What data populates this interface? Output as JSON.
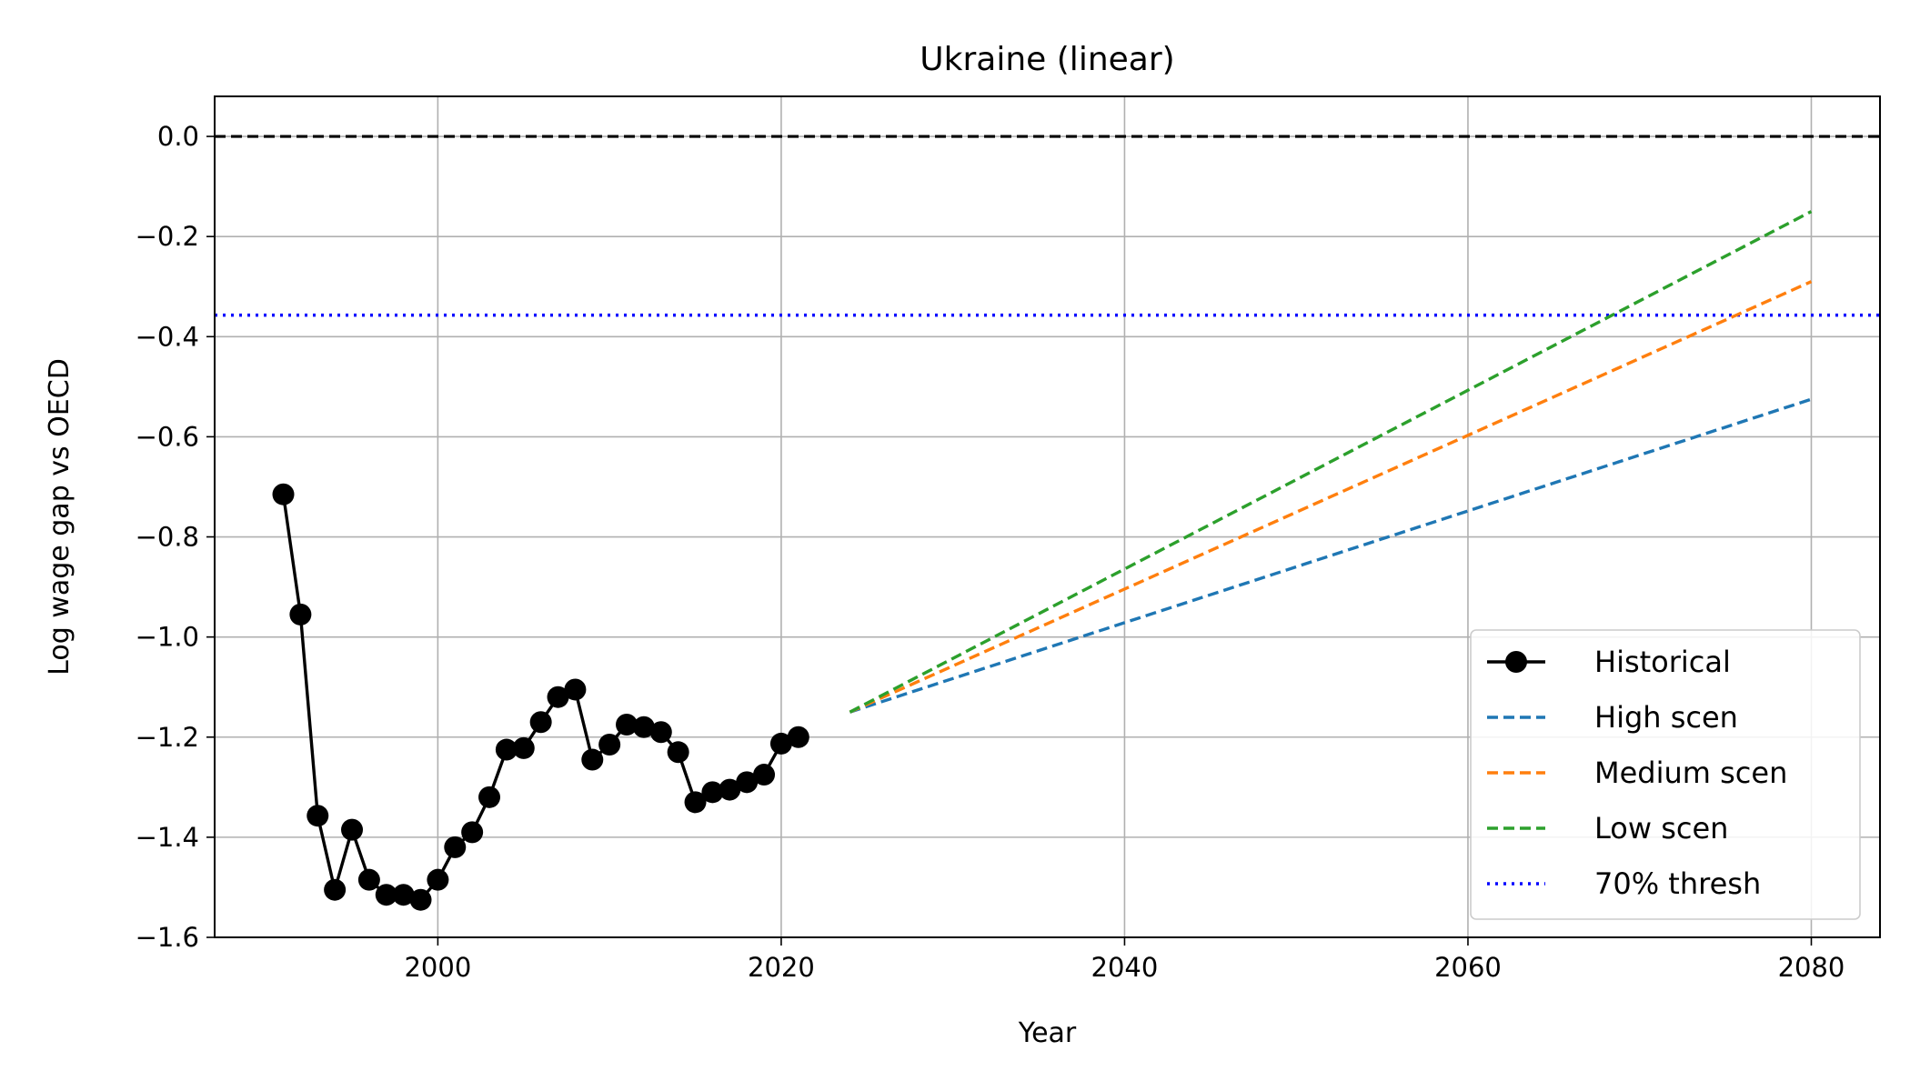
{
  "chart_data": {
    "type": "line",
    "title": "Ukraine (linear)",
    "xlabel": "Year",
    "ylabel": "Log wage gap vs OECD",
    "xlim": [
      1987,
      2084
    ],
    "ylim": [
      -1.6,
      0.08
    ],
    "xticks": [
      2000,
      2020,
      2040,
      2060,
      2080
    ],
    "xtick_labels": [
      "2000",
      "2020",
      "2040",
      "2060",
      "2080"
    ],
    "yticks": [
      0.0,
      -0.2,
      -0.4,
      -0.6,
      -0.8,
      -1.0,
      -1.2,
      -1.4,
      -1.6
    ],
    "ytick_labels": [
      "0.0",
      "−0.2",
      "−0.4",
      "−0.6",
      "−0.8",
      "−1.0",
      "−1.2",
      "−1.4",
      "−1.6"
    ],
    "grid": true,
    "legend_position": "lower-right",
    "series": [
      {
        "name": "Historical",
        "style": "solid-markers",
        "color": "#000000",
        "x": [
          1991,
          1992,
          1993,
          1994,
          1995,
          1996,
          1997,
          1998,
          1999,
          2000,
          2001,
          2002,
          2003,
          2004,
          2005,
          2006,
          2007,
          2008,
          2009,
          2010,
          2011,
          2012,
          2013,
          2014,
          2015,
          2016,
          2017,
          2018,
          2019,
          2020,
          2021
        ],
        "y": [
          -0.715,
          -0.955,
          -1.357,
          -1.505,
          -1.385,
          -1.485,
          -1.515,
          -1.515,
          -1.525,
          -1.485,
          -1.42,
          -1.39,
          -1.32,
          -1.225,
          -1.222,
          -1.17,
          -1.12,
          -1.105,
          -1.245,
          -1.215,
          -1.175,
          -1.18,
          -1.19,
          -1.23,
          -1.33,
          -1.31,
          -1.305,
          -1.29,
          -1.275,
          -1.213,
          -1.2
        ]
      },
      {
        "name": "High scen",
        "style": "dashed",
        "color": "#1f77b4",
        "x": [
          2024,
          2080
        ],
        "y": [
          -1.15,
          -0.525
        ]
      },
      {
        "name": "Medium scen",
        "style": "dashed",
        "color": "#ff7f0e",
        "x": [
          2024,
          2080
        ],
        "y": [
          -1.15,
          -0.29
        ]
      },
      {
        "name": "Low scen",
        "style": "dashed",
        "color": "#2ca02c",
        "x": [
          2024,
          2080
        ],
        "y": [
          -1.15,
          -0.15
        ]
      }
    ],
    "reference_lines": [
      {
        "name": "zero",
        "y": 0.0,
        "style": "dashed",
        "color": "#000000"
      },
      {
        "name": "70% thresh",
        "y": -0.357,
        "style": "dotted",
        "color": "#0000ff"
      }
    ],
    "legend": [
      {
        "label": "Historical",
        "style": "solid-markers",
        "color": "#000000"
      },
      {
        "label": "High scen",
        "style": "dashed",
        "color": "#1f77b4"
      },
      {
        "label": "Medium scen",
        "style": "dashed",
        "color": "#ff7f0e"
      },
      {
        "label": "Low scen",
        "style": "dashed",
        "color": "#2ca02c"
      },
      {
        "label": "70% thresh",
        "style": "dotted",
        "color": "#0000ff"
      }
    ]
  }
}
